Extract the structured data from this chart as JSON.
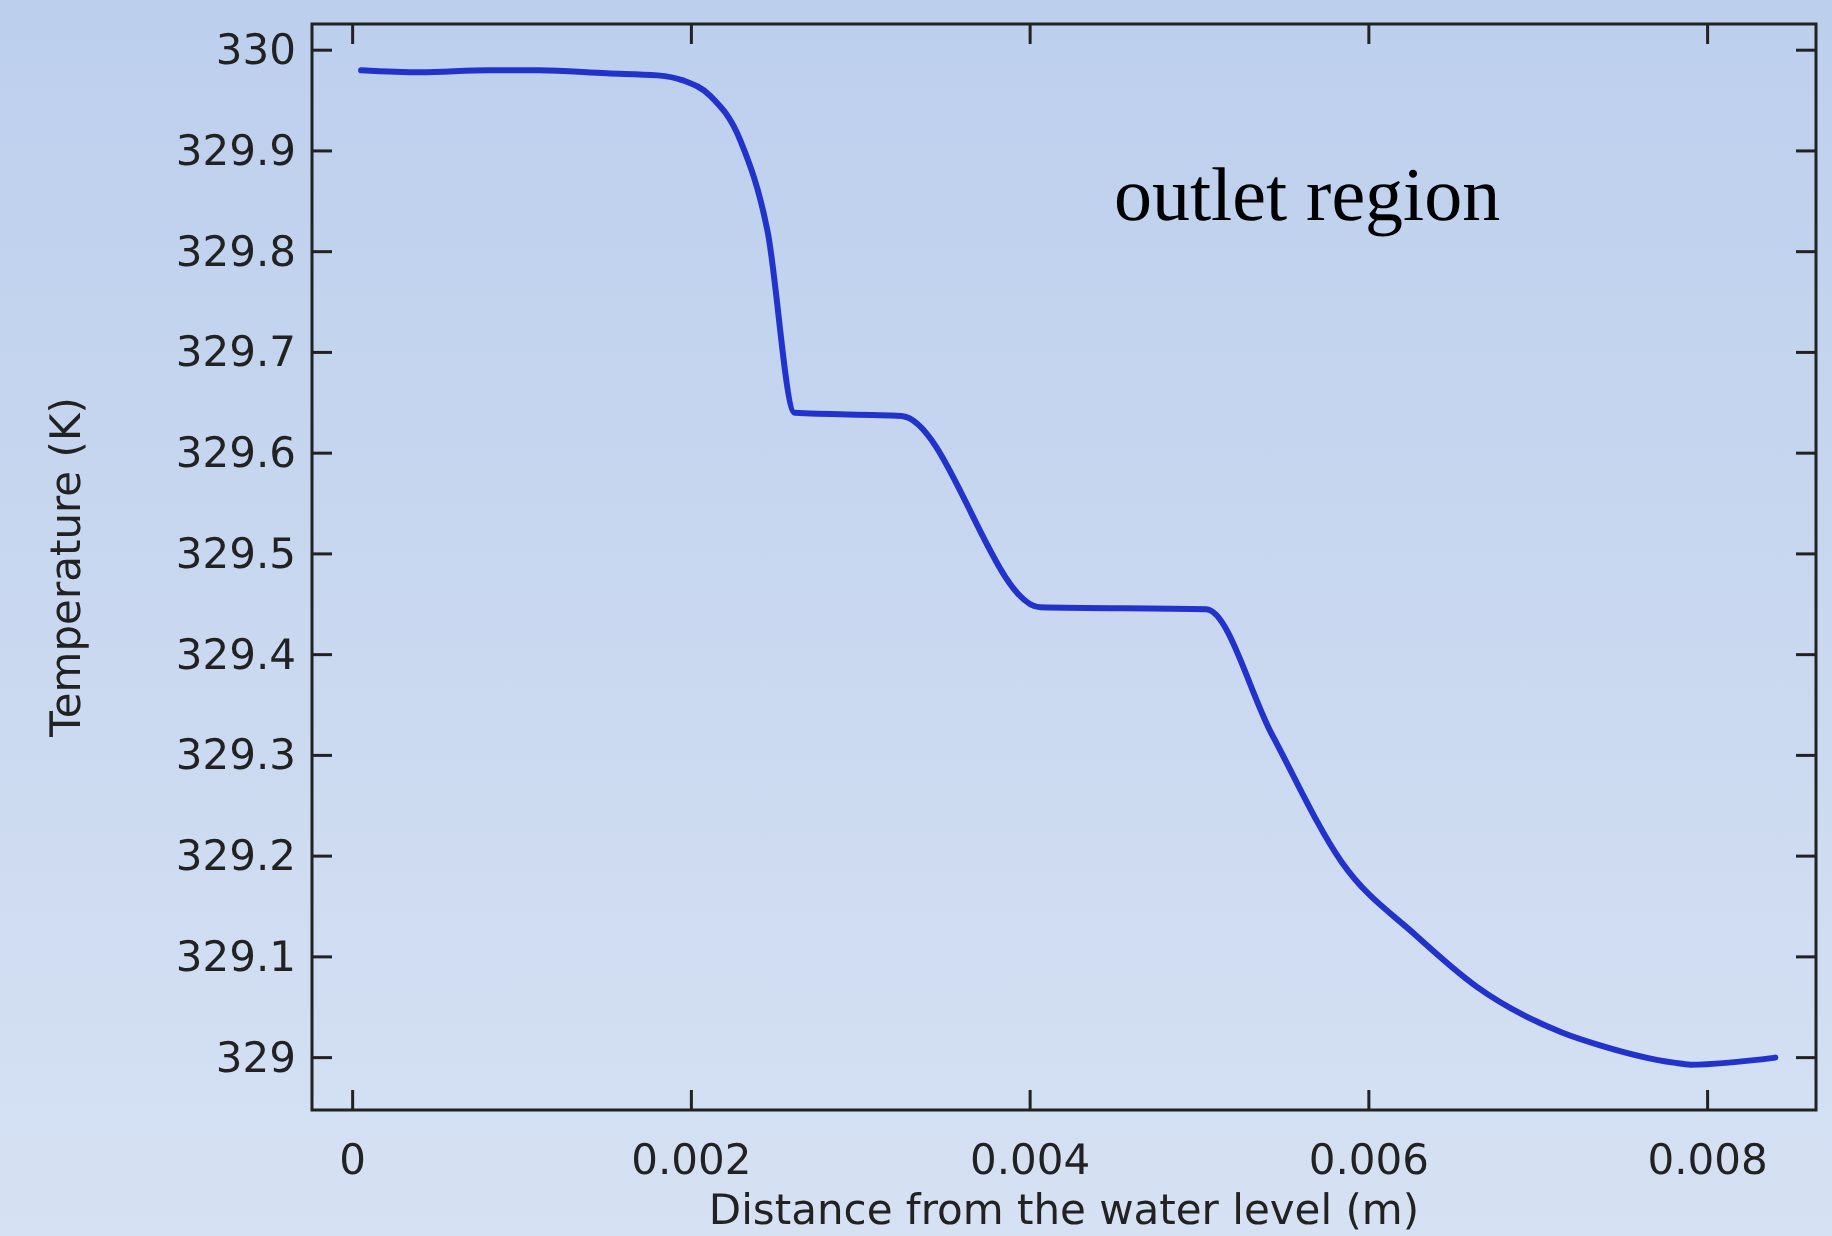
{
  "chart_data": {
    "type": "line",
    "xlabel": "Distance from the water level (m)",
    "ylabel": "Temperature (K)",
    "annotations": [
      "outlet region"
    ],
    "x": [
      5e-05,
      0.0004,
      0.0008,
      0.0011,
      0.0015,
      0.0018,
      0.00195,
      0.00211,
      0.00229,
      0.00245,
      0.00261,
      0.00324,
      0.00406,
      0.00504,
      0.00543,
      0.00584,
      0.00628,
      0.00664,
      0.00714,
      0.00737,
      0.0078,
      0.0079,
      0.0084
    ],
    "series": [
      {
        "color": "#2233cc",
        "values": [
          329.98,
          329.978,
          329.98,
          329.98,
          329.977,
          329.975,
          329.97,
          329.955,
          329.91,
          329.82,
          329.64,
          329.637,
          329.447,
          329.445,
          329.32,
          329.194,
          329.121,
          329.07,
          329.025,
          329.012,
          328.995,
          328.993,
          329.0
        ]
      }
    ],
    "xlim": [
      -0.00024,
      0.00864
    ],
    "ylim": [
      328.948,
      330.026
    ],
    "xticks": [
      0,
      0.002,
      0.004,
      0.006,
      0.008
    ],
    "yticks": [
      329,
      329.1,
      329.2,
      329.3,
      329.4,
      329.5,
      329.6,
      329.7,
      329.8,
      329.9,
      330
    ],
    "grid": false,
    "marker": "none",
    "line_style": "solid"
  }
}
